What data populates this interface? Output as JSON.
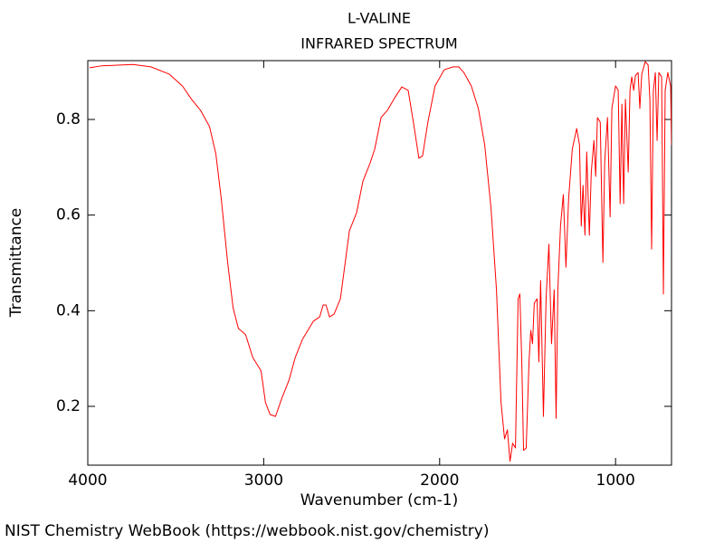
{
  "chart_data": {
    "type": "line",
    "title": "L-VALINE",
    "subtitle": "INFRARED SPECTRUM",
    "x_label": "Wavenumber (cm-1)",
    "y_label": "Transmittance",
    "footer": "NIST Chemistry WebBook (https://webbook.nist.gov/chemistry)",
    "xlim": [
      4000,
      682
    ],
    "ylim": [
      0.077,
      0.923
    ],
    "xticks": [
      4000,
      3000,
      2000,
      1000
    ],
    "yticks": [
      0.2,
      0.4,
      0.6,
      0.8
    ],
    "grid": false,
    "x": [
      3990,
      3923,
      3744,
      3641,
      3538,
      3462,
      3410,
      3359,
      3308,
      3272,
      3241,
      3205,
      3174,
      3144,
      3103,
      3062,
      3015,
      2990,
      2964,
      2933,
      2897,
      2856,
      2821,
      2780,
      2718,
      2682,
      2662,
      2646,
      2626,
      2600,
      2564,
      2513,
      2472,
      2436,
      2395,
      2369,
      2333,
      2297,
      2256,
      2215,
      2179,
      2149,
      2118,
      2097,
      2067,
      2026,
      1974,
      1923,
      1892,
      1862,
      1820,
      1780,
      1744,
      1708,
      1677,
      1651,
      1631,
      1615,
      1600,
      1585,
      1569,
      1554,
      1544,
      1533,
      1523,
      1508,
      1492,
      1482,
      1472,
      1462,
      1446,
      1436,
      1426,
      1410,
      1395,
      1379,
      1364,
      1349,
      1338,
      1328,
      1313,
      1297,
      1282,
      1267,
      1246,
      1221,
      1205,
      1195,
      1185,
      1174,
      1164,
      1149,
      1138,
      1123,
      1113,
      1103,
      1087,
      1072,
      1062,
      1046,
      1031,
      1021,
      1000,
      985,
      974,
      964,
      954,
      944,
      928,
      918,
      908,
      897,
      887,
      872,
      862,
      851,
      831,
      815,
      805,
      795,
      785,
      774,
      764,
      754,
      738,
      728,
      718,
      703,
      687,
      682
    ],
    "series": [
      {
        "name": "L-VALINE",
        "color": "#ff0000",
        "values": [
          0.908,
          0.912,
          0.915,
          0.91,
          0.895,
          0.87,
          0.842,
          0.819,
          0.785,
          0.728,
          0.633,
          0.501,
          0.406,
          0.363,
          0.35,
          0.302,
          0.274,
          0.208,
          0.183,
          0.179,
          0.217,
          0.255,
          0.302,
          0.34,
          0.378,
          0.387,
          0.412,
          0.412,
          0.387,
          0.393,
          0.425,
          0.567,
          0.605,
          0.671,
          0.709,
          0.738,
          0.804,
          0.819,
          0.845,
          0.868,
          0.861,
          0.794,
          0.719,
          0.724,
          0.794,
          0.87,
          0.904,
          0.91,
          0.91,
          0.898,
          0.87,
          0.823,
          0.747,
          0.615,
          0.444,
          0.208,
          0.132,
          0.151,
          0.085,
          0.123,
          0.113,
          0.425,
          0.435,
          0.293,
          0.108,
          0.113,
          0.293,
          0.359,
          0.331,
          0.416,
          0.425,
          0.293,
          0.463,
          0.179,
          0.425,
          0.539,
          0.331,
          0.444,
          0.175,
          0.444,
          0.577,
          0.643,
          0.491,
          0.633,
          0.738,
          0.781,
          0.747,
          0.577,
          0.662,
          0.558,
          0.732,
          0.558,
          0.69,
          0.756,
          0.681,
          0.804,
          0.794,
          0.501,
          0.709,
          0.804,
          0.596,
          0.823,
          0.87,
          0.861,
          0.624,
          0.832,
          0.624,
          0.842,
          0.69,
          0.861,
          0.889,
          0.861,
          0.892,
          0.898,
          0.823,
          0.895,
          0.921,
          0.914,
          0.842,
          0.529,
          0.861,
          0.898,
          0.756,
          0.898,
          0.889,
          0.435,
          0.861,
          0.898,
          0.87,
          0.747
        ]
      }
    ]
  }
}
